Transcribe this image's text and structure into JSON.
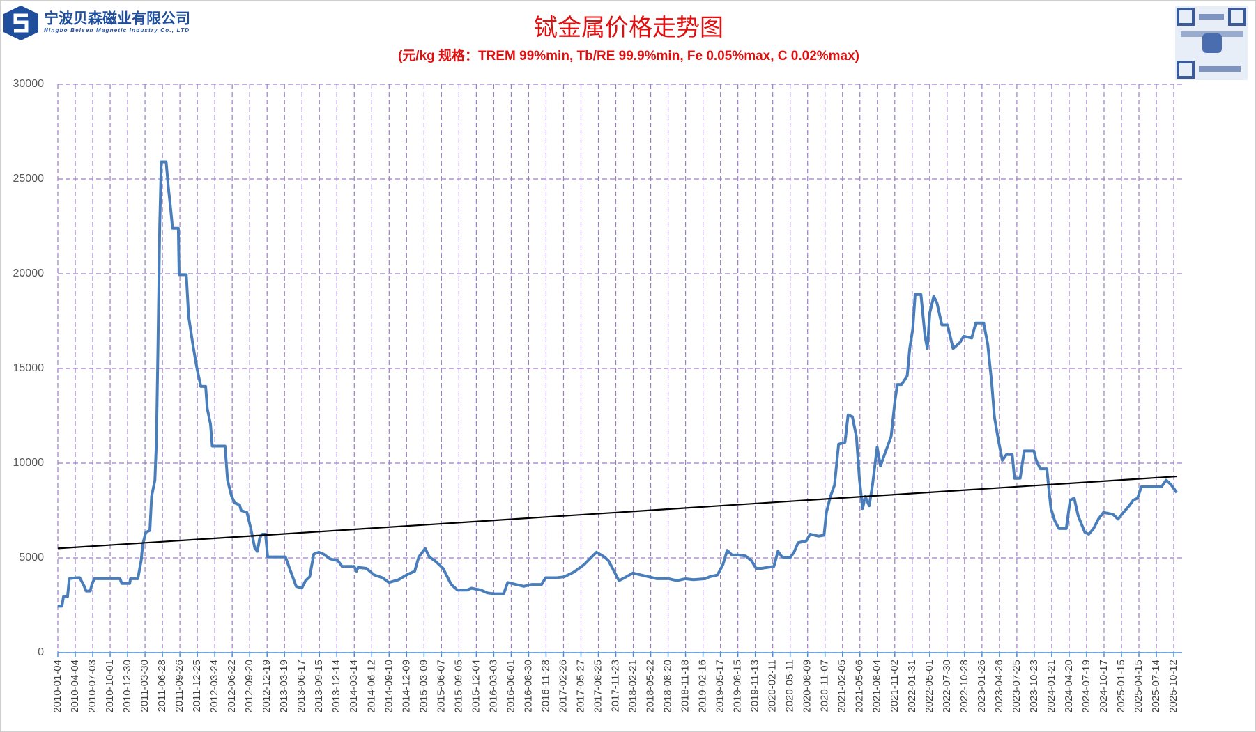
{
  "company": {
    "name": "宁波贝森磁业有限公司",
    "name_en": "Ningbo Beisen Magnetic Industry Co., LTD"
  },
  "chart_data": {
    "type": "line",
    "title": "铽金属价格走势图",
    "subtitle": "(元/kg    规格：TREM 99%min, Tb/RE 99.9%min, Fe 0.05%max, C 0.02%max)",
    "x": [
      "2010-01-04",
      "2010-01-25",
      "2010-02-02",
      "2010-02-23",
      "2010-03-04",
      "2010-04-06",
      "2010-04-27",
      "2010-05-18",
      "2010-05-30",
      "2010-06-20",
      "2010-06-29",
      "2010-07-11",
      "2010-11-21",
      "2010-11-30",
      "2011-01-10",
      "2011-01-14",
      "2011-02-21",
      "2011-03-10",
      "2011-03-18",
      "2011-04-03",
      "2011-04-24",
      "2011-05-03",
      "2011-05-20",
      "2011-05-28",
      "2011-06-05",
      "2011-06-14",
      "2011-06-22",
      "2011-07-17",
      "2011-07-29",
      "2011-08-11",
      "2011-08-19",
      "2011-09-18",
      "2011-09-22",
      "2011-10-29",
      "2011-11-10",
      "2011-12-02",
      "2011-12-23",
      "2012-01-12",
      "2012-02-06",
      "2012-02-14",
      "2012-03-02",
      "2012-03-11",
      "2012-05-16",
      "2012-05-29",
      "2012-06-19",
      "2012-07-05",
      "2012-07-30",
      "2012-08-07",
      "2012-09-06",
      "2012-09-26",
      "2012-10-17",
      "2012-10-30",
      "2012-11-11",
      "2012-11-24",
      "2012-12-11",
      "2012-12-22",
      "2013-03-24",
      "2013-04-14",
      "2013-05-18",
      "2013-06-16",
      "2013-07-06",
      "2013-07-27",
      "2013-08-17",
      "2013-09-12",
      "2013-10-06",
      "2013-11-09",
      "2013-12-20",
      "2014-01-10",
      "2014-03-13",
      "2014-03-26",
      "2014-04-03",
      "2014-05-15",
      "2014-06-25",
      "2014-08-07",
      "2014-09-09",
      "2014-10-29",
      "2014-12-09",
      "2015-01-20",
      "2015-02-10",
      "2015-03-15",
      "2015-04-05",
      "2015-05-04",
      "2015-06-15",
      "2015-07-27",
      "2015-08-29",
      "2015-10-18",
      "2015-11-08",
      "2015-12-28",
      "2016-01-30",
      "2016-03-11",
      "2016-04-23",
      "2016-05-14",
      "2016-06-24",
      "2016-08-05",
      "2016-09-15",
      "2016-11-05",
      "2016-11-26",
      "2017-01-18",
      "2017-03-01",
      "2017-04-20",
      "2017-06-13",
      "2017-08-15",
      "2017-09-25",
      "2017-10-16",
      "2017-11-06",
      "2017-12-09",
      "2018-01-07",
      "2018-02-19",
      "2018-04-01",
      "2018-05-13",
      "2018-06-23",
      "2018-08-24",
      "2018-10-05",
      "2018-11-16",
      "2018-12-28",
      "2019-02-28",
      "2019-03-21",
      "2019-05-02",
      "2019-05-30",
      "2019-06-21",
      "2019-07-16",
      "2019-08-14",
      "2019-09-24",
      "2019-10-24",
      "2019-11-17",
      "2019-12-17",
      "2020-02-17",
      "2020-03-09",
      "2020-03-30",
      "2020-05-10",
      "2020-05-31",
      "2020-06-21",
      "2020-08-02",
      "2020-08-22",
      "2020-10-04",
      "2020-11-02",
      "2020-11-14",
      "2020-12-05",
      "2020-12-26",
      "2021-01-16",
      "2021-02-18",
      "2021-03-06",
      "2021-03-28",
      "2021-04-18",
      "2021-05-04",
      "2021-05-20",
      "2021-06-02",
      "2021-06-23",
      "2021-07-10",
      "2021-08-03",
      "2021-08-20",
      "2021-09-10",
      "2021-10-14",
      "2021-11-03",
      "2021-11-15",
      "2021-12-07",
      "2022-01-05",
      "2022-01-18",
      "2022-02-03",
      "2022-02-15",
      "2022-03-17",
      "2022-04-07",
      "2022-04-19",
      "2022-05-02",
      "2022-05-22",
      "2022-06-08",
      "2022-07-03",
      "2022-08-01",
      "2022-08-30",
      "2022-10-03",
      "2022-10-24",
      "2022-12-04",
      "2022-12-25",
      "2023-02-04",
      "2023-02-25",
      "2023-03-18",
      "2023-03-31",
      "2023-04-21",
      "2023-05-11",
      "2023-06-01",
      "2023-07-01",
      "2023-07-13",
      "2023-08-11",
      "2023-09-01",
      "2023-10-21",
      "2023-11-02",
      "2023-11-23",
      "2023-12-27",
      "2024-01-04",
      "2024-01-17",
      "2024-02-06",
      "2024-02-27",
      "2024-04-05",
      "2024-04-25",
      "2024-05-16",
      "2024-06-06",
      "2024-07-10",
      "2024-07-30",
      "2024-08-24",
      "2024-09-18",
      "2024-10-14",
      "2024-12-02",
      "2024-12-28",
      "2025-01-25",
      "2025-02-24",
      "2025-03-17",
      "2025-04-08",
      "2025-04-27",
      "2025-06-08",
      "2025-08-09",
      "2025-09-03",
      "2025-09-29",
      "2025-10-27"
    ],
    "series": [
      {
        "color": "#4a7ebb",
        "values": [
          2450,
          2450,
          2950,
          2950,
          3900,
          3950,
          3950,
          3550,
          3250,
          3250,
          3600,
          3900,
          3900,
          3650,
          3650,
          3900,
          3900,
          4850,
          5700,
          6350,
          6450,
          8250,
          9100,
          11200,
          16250,
          22600,
          25900,
          25900,
          24500,
          23250,
          22400,
          22400,
          19950,
          19950,
          17750,
          16250,
          15000,
          14050,
          14050,
          12900,
          12050,
          10900,
          10900,
          9100,
          8250,
          7900,
          7800,
          7500,
          7400,
          6550,
          5500,
          5350,
          6050,
          6250,
          6250,
          5050,
          5050,
          4450,
          3500,
          3400,
          3800,
          4000,
          5200,
          5300,
          5200,
          4950,
          4850,
          4550,
          4550,
          4300,
          4500,
          4450,
          4100,
          3950,
          3700,
          3850,
          4100,
          4300,
          5050,
          5500,
          5050,
          4850,
          4450,
          3600,
          3300,
          3300,
          3400,
          3300,
          3150,
          3100,
          3100,
          3700,
          3600,
          3500,
          3600,
          3600,
          3950,
          3950,
          4000,
          4250,
          4650,
          5300,
          5050,
          4850,
          4450,
          3800,
          3950,
          4200,
          4100,
          4000,
          3900,
          3900,
          3800,
          3900,
          3850,
          3900,
          4000,
          4100,
          4650,
          5400,
          5150,
          5150,
          5100,
          4850,
          4450,
          4450,
          4550,
          5350,
          5050,
          5000,
          5300,
          5800,
          5900,
          6250,
          6150,
          6200,
          7400,
          8250,
          8850,
          11000,
          11100,
          12550,
          12450,
          11400,
          9100,
          7600,
          8250,
          7750,
          8850,
          10850,
          9850,
          10450,
          11400,
          13300,
          14150,
          14150,
          14600,
          16050,
          17100,
          18900,
          18900,
          16700,
          16050,
          17950,
          18800,
          18450,
          17300,
          17300,
          16050,
          16350,
          16700,
          16600,
          17400,
          17400,
          16250,
          14150,
          12450,
          11200,
          10150,
          10450,
          10450,
          9200,
          9200,
          10650,
          10650,
          10150,
          9700,
          9700,
          8850,
          7600,
          6950,
          6550,
          6550,
          8050,
          8150,
          7200,
          6350,
          6250,
          6550,
          7050,
          7400,
          7300,
          7050,
          7400,
          7750,
          8050,
          8150,
          8750,
          8750,
          8750,
          9100,
          8850,
          8450
        ]
      }
    ],
    "trend": {
      "color": "#000000",
      "x": [
        "2010-01-04",
        "2025-10-27"
      ],
      "values": [
        5500,
        9300
      ]
    },
    "xlim": [
      "2010-01-04",
      "2025-11-24"
    ],
    "xticks": [
      "2010-01-04",
      "2010-04-04",
      "2010-07-03",
      "2010-10-01",
      "2010-12-30",
      "2011-03-30",
      "2011-06-28",
      "2011-09-26",
      "2011-12-25",
      "2012-03-24",
      "2012-06-22",
      "2012-09-20",
      "2012-12-19",
      "2013-03-19",
      "2013-06-17",
      "2013-09-15",
      "2013-12-14",
      "2014-03-14",
      "2014-06-12",
      "2014-09-10",
      "2014-12-09",
      "2015-03-09",
      "2015-06-07",
      "2015-09-05",
      "2015-12-04",
      "2016-03-03",
      "2016-06-01",
      "2016-08-30",
      "2016-11-28",
      "2017-02-26",
      "2017-05-27",
      "2017-08-25",
      "2017-11-23",
      "2018-02-21",
      "2018-05-22",
      "2018-08-20",
      "2018-11-18",
      "2019-02-16",
      "2019-05-17",
      "2019-08-15",
      "2019-11-13",
      "2020-02-11",
      "2020-05-11",
      "2020-08-09",
      "2020-11-07",
      "2021-02-05",
      "2021-05-06",
      "2021-08-04",
      "2021-11-02",
      "2022-01-31",
      "2022-05-01",
      "2022-07-30",
      "2022-10-28",
      "2023-01-26",
      "2023-04-26",
      "2023-07-25",
      "2023-10-23",
      "2024-01-21",
      "2024-04-20",
      "2024-07-19",
      "2024-10-17",
      "2025-01-15",
      "2025-04-15",
      "2025-07-14",
      "2025-10-12"
    ],
    "ylim": [
      0,
      30000
    ],
    "yticks": [
      0,
      5000,
      10000,
      15000,
      20000,
      25000,
      30000
    ],
    "grid": true
  }
}
